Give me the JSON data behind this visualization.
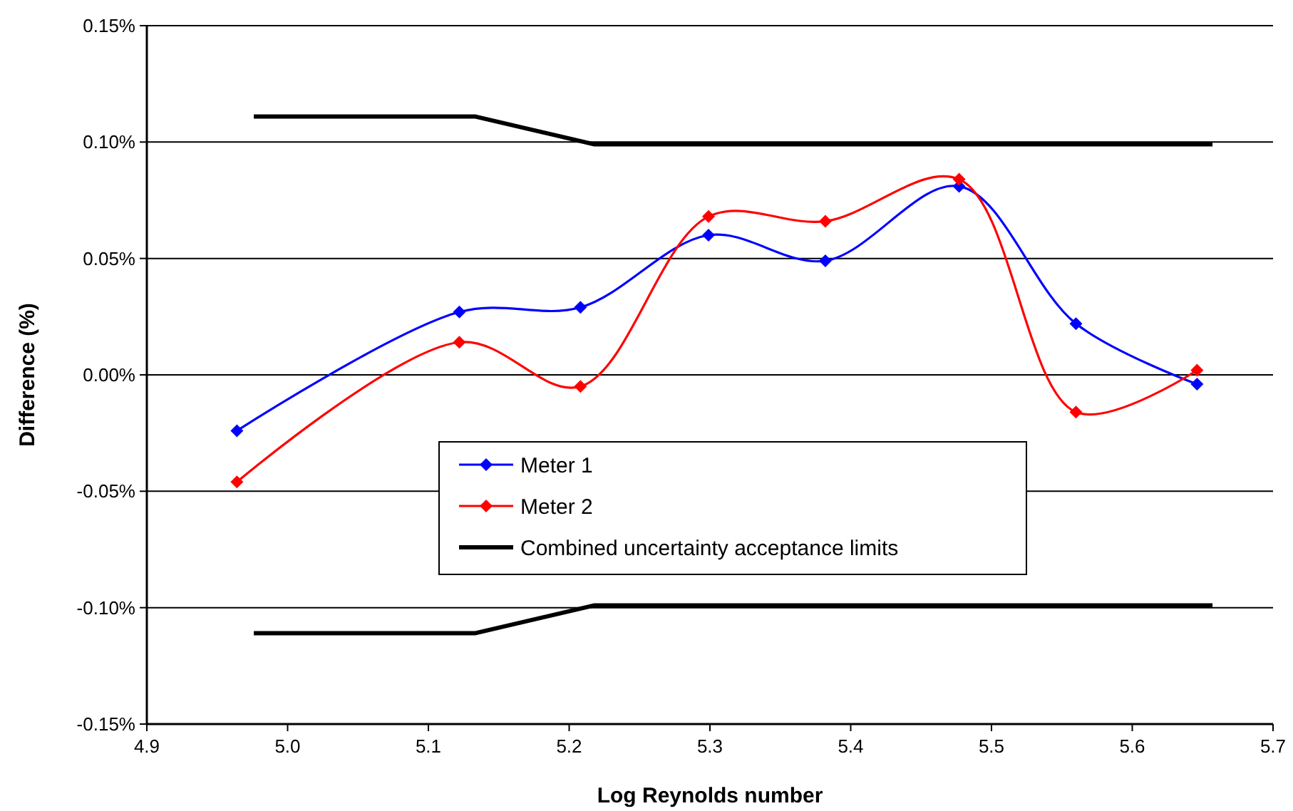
{
  "chart_data": {
    "type": "line",
    "xlabel": "Log Reynolds number",
    "ylabel": "Difference (%)",
    "xlim": [
      4.9,
      5.7
    ],
    "xticks": [
      4.9,
      {
        "value": 5.0,
        "label": "5.0"
      },
      5.1,
      5.2,
      5.3,
      5.4,
      5.5,
      5.6,
      5.7
    ],
    "ylim": [
      -0.15,
      0.15
    ],
    "yticks": [
      {
        "value": -0.15,
        "label": "-0.15%"
      },
      {
        "value": -0.1,
        "label": "-0.10%"
      },
      {
        "value": -0.05,
        "label": "-0.05%"
      },
      {
        "value": 0,
        "label": "0.00%"
      },
      {
        "value": 0.05,
        "label": "0.05%"
      },
      {
        "value": 0.1,
        "label": "0.10%"
      },
      {
        "value": 0.15,
        "label": "0.15%"
      }
    ],
    "grid": "y",
    "legend": "bottom",
    "marker": "diamond",
    "series": [
      {
        "name": "Meter 1",
        "color": "#0000ff",
        "x": [
          4.964,
          5.122,
          5.208,
          5.299,
          5.382,
          5.477,
          5.56,
          5.646
        ],
        "values": [
          -0.024,
          0.027,
          0.029,
          0.06,
          0.049,
          0.081,
          0.022,
          -0.004
        ]
      },
      {
        "name": "Meter 2",
        "color": "#ff0000",
        "x": [
          4.964,
          5.122,
          5.208,
          5.299,
          5.382,
          5.477,
          5.56,
          5.646
        ],
        "values": [
          -0.046,
          0.014,
          -0.005,
          0.068,
          0.066,
          0.084,
          -0.016,
          0.002
        ]
      },
      {
        "name": "Combined uncertainty acceptance limits",
        "color": "#000000",
        "marker": "none",
        "x": [
          4.976,
          5.133,
          5.218,
          5.657
        ],
        "values": [
          0.111,
          0.111,
          0.099,
          0.099
        ]
      },
      {
        "color": "#000000",
        "marker": "none",
        "x": [
          4.976,
          5.133,
          5.218,
          5.657
        ],
        "values": [
          -0.111,
          -0.111,
          -0.099,
          -0.099
        ]
      }
    ]
  }
}
